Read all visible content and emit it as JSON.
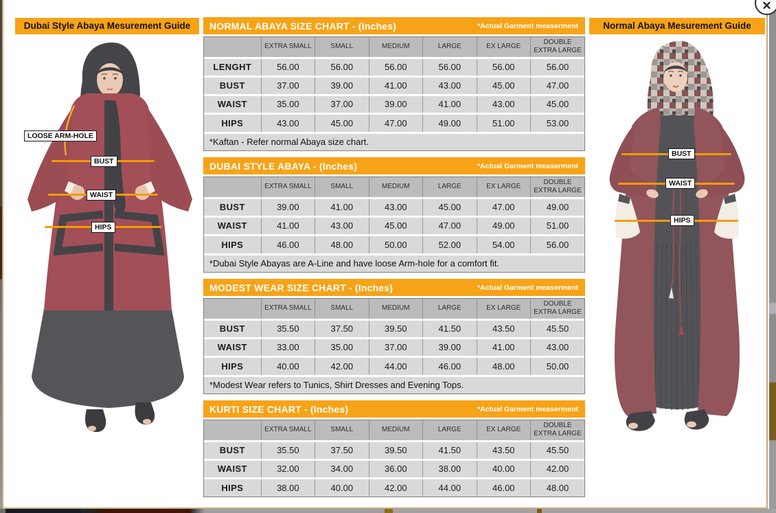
{
  "modal": {
    "close_glyph": "✕"
  },
  "left_guide": {
    "title": "Dubai Style Abaya Mesurement Guide",
    "arm_hole_label": "LOOSE ARM-HOLE",
    "bust_label": "BUST",
    "waist_label": "WAIST",
    "hips_label": "HIPS"
  },
  "right_guide": {
    "title": "Normal Abaya Mesurement Guide",
    "bust_label": "BUST",
    "waist_label": "WAIST",
    "hips_label": "HIPS"
  },
  "tables": [
    {
      "title": "NORMAL ABAYA SIZE CHART - (Inches)",
      "note": "*Actual Garment measerment",
      "columns": [
        "",
        "EXTRA SMALL",
        "SMALL",
        "MEDIUM",
        "LARGE",
        "EX LARGE",
        "DOUBLE EXTRA LARGE"
      ],
      "rows": [
        {
          "label": "LENGHT",
          "values": [
            "56.00",
            "56.00",
            "56.00",
            "56.00",
            "56.00",
            "56.00"
          ]
        },
        {
          "label": "BUST",
          "values": [
            "37.00",
            "39.00",
            "41.00",
            "43.00",
            "45.00",
            "47.00"
          ]
        },
        {
          "label": "WAIST",
          "values": [
            "35.00",
            "37.00",
            "39.00",
            "41.00",
            "43.00",
            "45.00"
          ]
        },
        {
          "label": "HIPS",
          "values": [
            "43.00",
            "45.00",
            "47.00",
            "49.00",
            "51.00",
            "53.00"
          ]
        }
      ],
      "footer": "*Kaftan - Refer normal Abaya size chart."
    },
    {
      "title": "DUBAI STYLE ABAYA - (Inches)",
      "note": "*Actual Garment measerment",
      "columns": [
        "",
        "EXTRA SMALL",
        "SMALL",
        "MEDIUM",
        "LARGE",
        "EX LARGE",
        "DOUBLE EXTRA LARGE"
      ],
      "rows": [
        {
          "label": "BUST",
          "values": [
            "39.00",
            "41.00",
            "43.00",
            "45.00",
            "47.00",
            "49.00"
          ]
        },
        {
          "label": "WAIST",
          "values": [
            "41.00",
            "43.00",
            "45.00",
            "47.00",
            "49.00",
            "51.00"
          ]
        },
        {
          "label": "HIPS",
          "values": [
            "46.00",
            "48.00",
            "50.00",
            "52.00",
            "54.00",
            "56.00"
          ]
        }
      ],
      "footer": "*Dubai Style Abayas are A-Line and have loose Arm-hole for a comfort fit."
    },
    {
      "title": "MODEST WEAR SIZE CHART - (Inches)",
      "note": "*Actual Garment measerment",
      "columns": [
        "",
        "EXTRA SMALL",
        "SMALL",
        "MEDIUM",
        "LARGE",
        "EX LARGE",
        "DOUBLE EXTRA LARGE"
      ],
      "rows": [
        {
          "label": "BUST",
          "values": [
            "35.50",
            "37.50",
            "39.50",
            "41.50",
            "43.50",
            "45.50"
          ]
        },
        {
          "label": "WAIST",
          "values": [
            "33.00",
            "35.00",
            "37.00",
            "39.00",
            "41.00",
            "43.00"
          ]
        },
        {
          "label": "HIPS",
          "values": [
            "40.00",
            "42.00",
            "44.00",
            "46.00",
            "48.00",
            "50.00"
          ]
        }
      ],
      "footer": "*Modest Wear refers to Tunics, Shirt Dresses and Evening Tops."
    },
    {
      "title": "KURTI SIZE CHART - (Inches)",
      "note": "*Actual Garment measerment",
      "columns": [
        "",
        "EXTRA SMALL",
        "SMALL",
        "MEDIUM",
        "LARGE",
        "EX LARGE",
        "DOUBLE EXTRA LARGE"
      ],
      "rows": [
        {
          "label": "BUST",
          "values": [
            "35.50",
            "37.50",
            "39.50",
            "41.50",
            "43.50",
            "45.50"
          ]
        },
        {
          "label": "WAIST",
          "values": [
            "32.00",
            "34.00",
            "36.00",
            "38.00",
            "40.00",
            "42.00"
          ]
        },
        {
          "label": "HIPS",
          "values": [
            "38.00",
            "40.00",
            "42.00",
            "44.00",
            "46.00",
            "48.00"
          ]
        }
      ],
      "footer": ""
    }
  ],
  "colors": {
    "accent_orange": "#F6A318",
    "measure_line_orange": "#F59B00",
    "table_header_grey": "#BCBCBC",
    "table_cell_grey": "#D9D9D9",
    "modal_border_tan": "#C9A87C"
  }
}
